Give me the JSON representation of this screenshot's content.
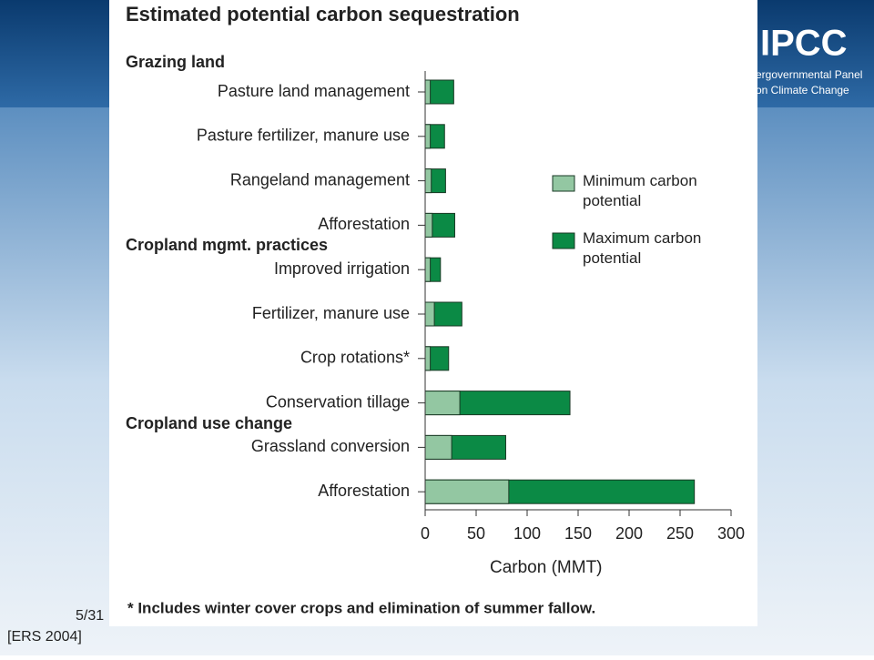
{
  "slide": {
    "logo": "IPCC",
    "logo_line1": "ergovernmental Panel",
    "logo_line2": "on Climate Change",
    "page": "5/31",
    "source": "[ERS 2004]"
  },
  "chart_data": {
    "type": "hbar-overlay",
    "title": "Estimated potential carbon sequestration",
    "groups": [
      "Grazing land",
      "Cropland mgmt. practices",
      "Cropland use change"
    ],
    "categories": [
      "Pasture land management",
      "Pasture fertilizer, manure use",
      "Rangeland management",
      "Afforestation",
      "Improved irrigation",
      "Fertilizer, manure use",
      "Crop rotations*",
      "Conservation tillage",
      "Grassland conversion",
      "Afforestation"
    ],
    "series": [
      {
        "name": "Maximum carbon potential",
        "color": "#0b8a45",
        "values": [
          28,
          19,
          20,
          29,
          15,
          36,
          23,
          142,
          79,
          264
        ]
      },
      {
        "name": "Minimum carbon potential",
        "color": "#93c7a2",
        "values": [
          5,
          5,
          6,
          7,
          5,
          9,
          5,
          34,
          26,
          82
        ]
      }
    ],
    "xlim": [
      0,
      300
    ],
    "xticks": [
      0,
      50,
      100,
      150,
      200,
      250,
      300
    ],
    "xlabel": "Carbon (MMT)",
    "footnote": "* Includes winter cover crops and elimination of summer fallow."
  }
}
